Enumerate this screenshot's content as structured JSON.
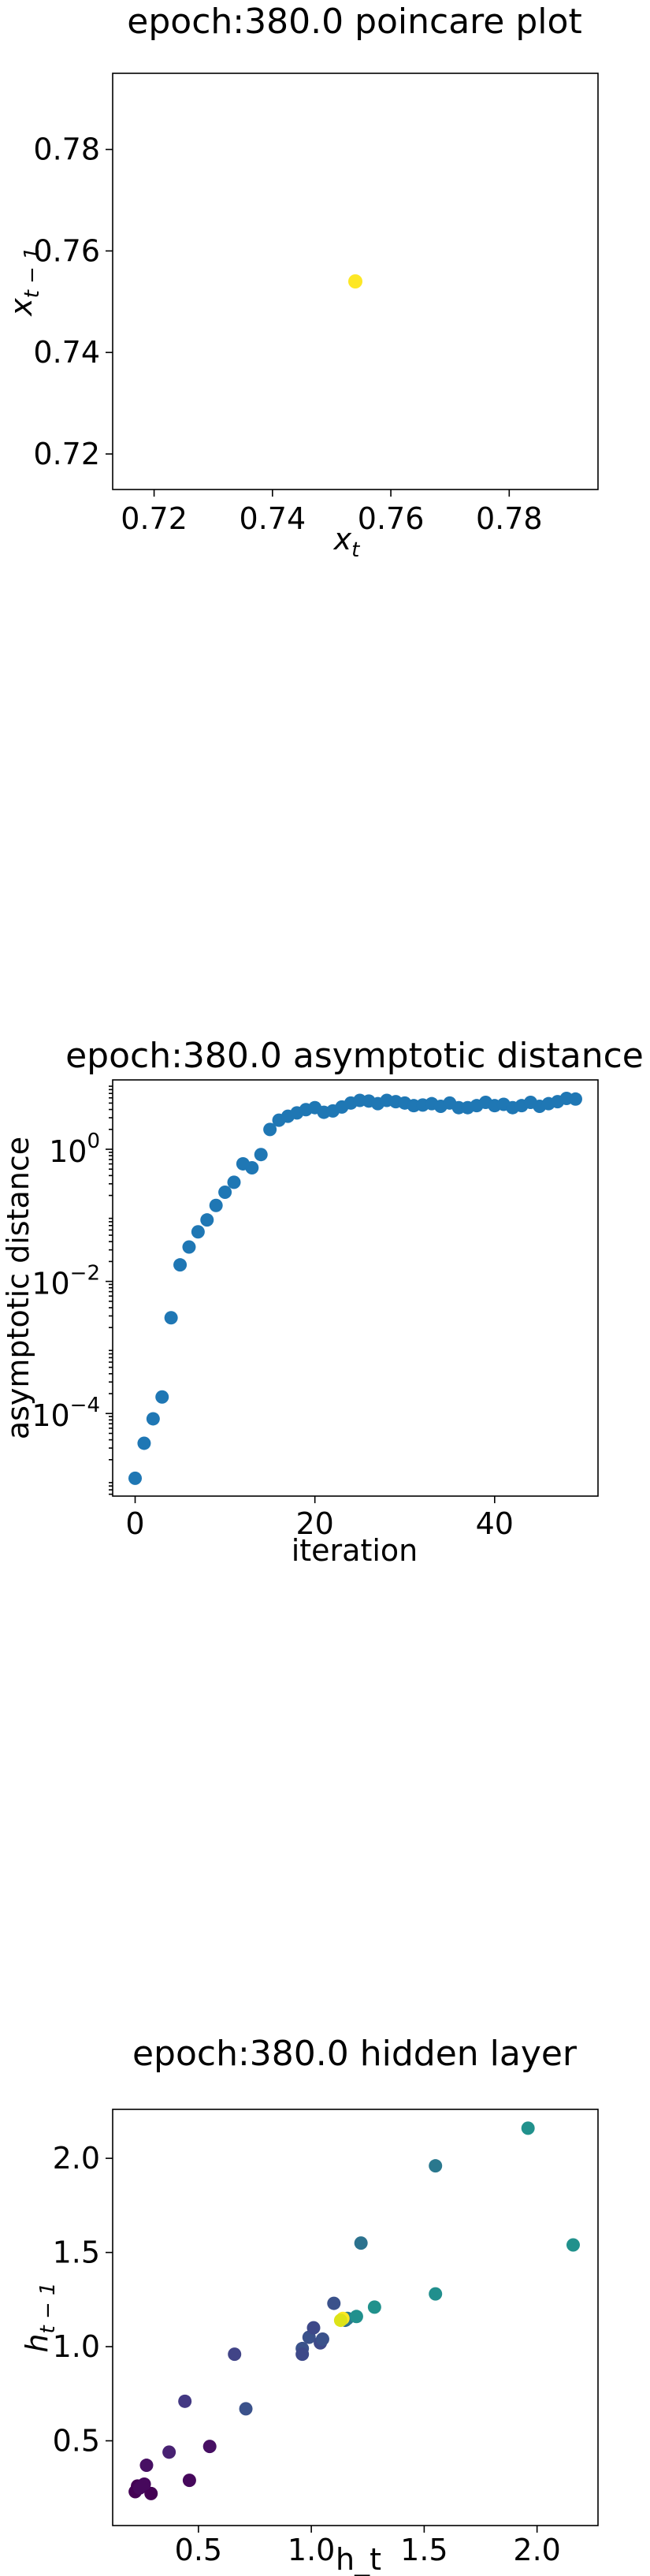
{
  "chart_data": [
    {
      "type": "scatter",
      "title": "epoch:380.0 poincare plot",
      "xlabel": "x",
      "xlabel_sub": "t",
      "ylabel": "x",
      "ylabel_sub": "t − 1",
      "xlim": [
        0.713,
        0.795
      ],
      "ylim": [
        0.713,
        0.795
      ],
      "xticks": [
        0.72,
        0.74,
        0.76,
        0.78
      ],
      "yticks": [
        0.72,
        0.74,
        0.76,
        0.78
      ],
      "xtick_labels": [
        "0.72",
        "0.74",
        "0.76",
        "0.78"
      ],
      "ytick_labels": [
        "0.72",
        "0.74",
        "0.76",
        "0.78"
      ],
      "grid": false,
      "point_color": "#fde725",
      "points": [
        {
          "x": 0.754,
          "y": 0.754
        }
      ]
    },
    {
      "type": "scatter",
      "title": "epoch:380.0 asymptotic distance",
      "xlabel": "iteration",
      "ylabel": "asymptotic distance",
      "yscale": "log",
      "xlim": [
        -2.5,
        51.5
      ],
      "ylim_log10": [
        -5.25,
        1.05
      ],
      "xticks": [
        0,
        20,
        40
      ],
      "xtick_labels": [
        "0",
        "20",
        "40"
      ],
      "yticks_log10": [
        -4,
        -2,
        0
      ],
      "ytick_labels": [
        {
          "base": "10",
          "exp": "−4"
        },
        {
          "base": "10",
          "exp": "−2"
        },
        {
          "base": "10",
          "exp": "0"
        }
      ],
      "grid": false,
      "point_color": "#1f77b4",
      "x": [
        0,
        1,
        2,
        3,
        4,
        5,
        6,
        7,
        8,
        9,
        10,
        11,
        12,
        13,
        14,
        15,
        16,
        17,
        18,
        19,
        20,
        21,
        22,
        23,
        24,
        25,
        26,
        27,
        28,
        29,
        30,
        31,
        32,
        33,
        34,
        35,
        36,
        37,
        38,
        39,
        40,
        41,
        42,
        43,
        44,
        45,
        46,
        47,
        48,
        49
      ],
      "log10_y": [
        -4.98,
        -4.45,
        -4.08,
        -3.75,
        -2.55,
        -1.75,
        -1.48,
        -1.25,
        -1.07,
        -0.85,
        -0.65,
        -0.5,
        -0.22,
        -0.28,
        -0.08,
        0.3,
        0.44,
        0.5,
        0.55,
        0.6,
        0.63,
        0.56,
        0.58,
        0.64,
        0.7,
        0.74,
        0.73,
        0.69,
        0.74,
        0.72,
        0.7,
        0.66,
        0.67,
        0.69,
        0.65,
        0.7,
        0.63,
        0.63,
        0.66,
        0.71,
        0.66,
        0.68,
        0.63,
        0.66,
        0.71,
        0.65,
        0.69,
        0.72,
        0.77,
        0.76
      ]
    },
    {
      "type": "scatter",
      "title": "epoch:380.0 hidden layer",
      "xlabel": "h_t",
      "ylabel": "h",
      "ylabel_sub": "t − 1",
      "xlim": [
        0.12,
        2.27
      ],
      "ylim": [
        0.05,
        2.26
      ],
      "xticks": [
        0.5,
        1.0,
        1.5,
        2.0
      ],
      "yticks": [
        0.5,
        1.0,
        1.5,
        2.0
      ],
      "xtick_labels": [
        "0.5",
        "1.0",
        "1.5",
        "2.0"
      ],
      "ytick_labels": [
        "0.5",
        "1.0",
        "1.5",
        "2.0"
      ],
      "grid": false,
      "points": [
        {
          "x": 0.22,
          "y": 0.23,
          "color": "#440154"
        },
        {
          "x": 0.23,
          "y": 0.26,
          "color": "#440154"
        },
        {
          "x": 0.24,
          "y": 0.25,
          "color": "#46085c"
        },
        {
          "x": 0.27,
          "y": 0.37,
          "color": "#471063"
        },
        {
          "x": 0.29,
          "y": 0.22,
          "color": "#440154"
        },
        {
          "x": 0.26,
          "y": 0.27,
          "color": "#46085c"
        },
        {
          "x": 0.37,
          "y": 0.44,
          "color": "#482172"
        },
        {
          "x": 0.44,
          "y": 0.71,
          "color": "#443983"
        },
        {
          "x": 0.46,
          "y": 0.29,
          "color": "#46085c"
        },
        {
          "x": 0.55,
          "y": 0.47,
          "color": "#471063"
        },
        {
          "x": 0.66,
          "y": 0.96,
          "color": "#414487"
        },
        {
          "x": 0.71,
          "y": 0.67,
          "color": "#3b528b"
        },
        {
          "x": 0.96,
          "y": 0.99,
          "color": "#3b528b"
        },
        {
          "x": 0.96,
          "y": 0.96,
          "color": "#3e4989"
        },
        {
          "x": 0.99,
          "y": 1.05,
          "color": "#3b528b"
        },
        {
          "x": 1.01,
          "y": 1.1,
          "color": "#3e4989"
        },
        {
          "x": 1.04,
          "y": 1.02,
          "color": "#3e4989"
        },
        {
          "x": 1.05,
          "y": 1.04,
          "color": "#3b528b"
        },
        {
          "x": 1.1,
          "y": 1.23,
          "color": "#3b528b"
        },
        {
          "x": 1.15,
          "y": 1.14,
          "color": "#31688e"
        },
        {
          "x": 1.16,
          "y": 1.15,
          "color": "#2a788e"
        },
        {
          "x": 1.2,
          "y": 1.16,
          "color": "#21908d"
        },
        {
          "x": 1.22,
          "y": 1.55,
          "color": "#2c728e"
        },
        {
          "x": 1.28,
          "y": 1.21,
          "color": "#21918c"
        },
        {
          "x": 1.55,
          "y": 1.96,
          "color": "#2a788e"
        },
        {
          "x": 1.55,
          "y": 1.28,
          "color": "#218f8d"
        },
        {
          "x": 1.96,
          "y": 2.16,
          "color": "#21918c"
        },
        {
          "x": 2.16,
          "y": 1.54,
          "color": "#21918c"
        },
        {
          "x": 1.14,
          "y": 1.15,
          "color": "#fde725"
        },
        {
          "x": 1.13,
          "y": 1.14,
          "color": "#dde318"
        }
      ]
    }
  ]
}
